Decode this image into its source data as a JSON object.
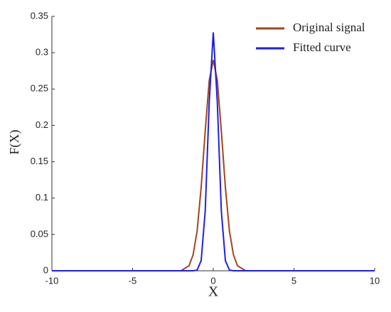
{
  "chart_data": {
    "type": "line",
    "x_label": "X",
    "y_label": "F(X)",
    "x": [
      -10,
      -2,
      -1.5,
      -1.25,
      -1,
      -0.75,
      -0.5,
      -0.25,
      0,
      0.25,
      0.5,
      0.75,
      1,
      1.25,
      1.5,
      2,
      10
    ],
    "series": [
      {
        "name": "Original signal",
        "color": "#a0461e",
        "values": [
          0,
          0,
          0.007,
          0.022,
          0.055,
          0.115,
          0.192,
          0.262,
          0.29,
          0.262,
          0.192,
          0.115,
          0.055,
          0.022,
          0.007,
          0,
          0
        ]
      },
      {
        "name": "Fitted curve",
        "color": "#1f1fe6",
        "values": [
          0,
          0,
          0,
          0,
          0.001,
          0.014,
          0.082,
          0.232,
          0.328,
          0.232,
          0.082,
          0.014,
          0.001,
          0,
          0,
          0,
          0
        ]
      }
    ],
    "xlim": [
      -10,
      10
    ],
    "xticks": [
      -10,
      -5,
      0,
      5,
      10
    ],
    "ylim": [
      0,
      0.35
    ],
    "yticks": [
      0,
      0.05,
      0.1,
      0.15,
      0.2,
      0.25,
      0.3,
      0.35
    ],
    "legend": "upper-right"
  }
}
